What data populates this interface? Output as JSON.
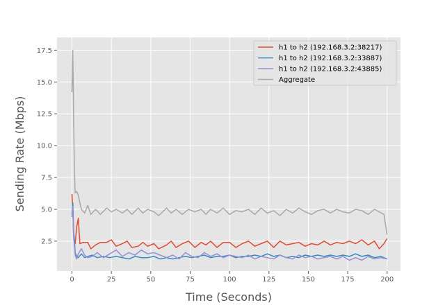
{
  "chart_data": {
    "type": "line",
    "title": "",
    "xlabel": "Time (Seconds)",
    "ylabel": "Sending Rate (Mbps)",
    "xlim": [
      -9.5,
      208.5
    ],
    "ylim": [
      0.15,
      18.5
    ],
    "xticks": [
      0,
      25,
      50,
      75,
      100,
      125,
      150,
      175,
      200
    ],
    "yticks": [
      2.5,
      5.0,
      7.5,
      10.0,
      12.5,
      15.0,
      17.5
    ],
    "xtick_labels": [
      "0",
      "25",
      "50",
      "75",
      "100",
      "125",
      "150",
      "175",
      "200"
    ],
    "ytick_labels": [
      "2.5",
      "5.0",
      "7.5",
      "10.0",
      "12.5",
      "15.0",
      "17.5"
    ],
    "grid": true,
    "legend_position": "top-right",
    "series": [
      {
        "name": "h1 to h2 (192.168.3.2:38217)",
        "color": "#e24a33",
        "x": [
          0,
          0.5,
          1,
          2,
          3,
          4,
          5,
          7,
          10,
          12,
          15,
          18,
          22,
          25,
          28,
          32,
          35,
          38,
          42,
          45,
          48,
          52,
          55,
          60,
          63,
          66,
          70,
          74,
          78,
          82,
          85,
          88,
          92,
          96,
          100,
          104,
          108,
          112,
          116,
          120,
          124,
          128,
          132,
          136,
          140,
          144,
          148,
          152,
          156,
          160,
          164,
          168,
          172,
          176,
          180,
          184,
          188,
          192,
          195,
          198,
          200
        ],
        "y": [
          6.2,
          5.0,
          3.0,
          2.3,
          3.6,
          4.3,
          2.3,
          2.4,
          2.4,
          1.9,
          2.2,
          2.4,
          2.4,
          2.6,
          2.1,
          2.3,
          2.5,
          2.0,
          2.1,
          2.4,
          2.1,
          2.3,
          1.9,
          2.2,
          2.5,
          2.0,
          2.3,
          2.5,
          2.0,
          2.4,
          2.2,
          2.5,
          2.0,
          2.4,
          2.4,
          2.0,
          2.3,
          2.5,
          2.1,
          2.3,
          2.5,
          2.0,
          2.5,
          2.2,
          2.3,
          2.4,
          2.1,
          2.3,
          2.2,
          2.5,
          2.2,
          2.4,
          2.3,
          2.5,
          2.3,
          2.6,
          2.2,
          2.5,
          1.9,
          2.3,
          2.7
        ]
      },
      {
        "name": "h1 to h2 (192.168.3.2:33887)",
        "color": "#348abd",
        "x": [
          0,
          0.5,
          1,
          2,
          3,
          4,
          6,
          8,
          10,
          13,
          16,
          20,
          24,
          28,
          32,
          36,
          40,
          44,
          48,
          52,
          56,
          60,
          64,
          68,
          72,
          76,
          80,
          84,
          88,
          92,
          96,
          100,
          104,
          108,
          112,
          116,
          120,
          124,
          128,
          132,
          136,
          140,
          144,
          148,
          152,
          156,
          160,
          164,
          168,
          172,
          176,
          180,
          184,
          188,
          192,
          196,
          200
        ],
        "y": [
          4.6,
          5.5,
          3.5,
          1.6,
          1.3,
          1.2,
          1.5,
          1.2,
          1.3,
          1.4,
          1.2,
          1.3,
          1.2,
          1.3,
          1.2,
          1.1,
          1.3,
          1.2,
          1.2,
          1.3,
          1.1,
          1.2,
          1.1,
          1.2,
          1.3,
          1.2,
          1.3,
          1.4,
          1.2,
          1.3,
          1.3,
          1.4,
          1.2,
          1.3,
          1.3,
          1.4,
          1.3,
          1.5,
          1.3,
          1.4,
          1.2,
          1.3,
          1.2,
          1.4,
          1.3,
          1.4,
          1.3,
          1.4,
          1.3,
          1.4,
          1.3,
          1.5,
          1.3,
          1.4,
          1.2,
          1.3,
          1.1
        ]
      },
      {
        "name": "h1 to h2 (192.168.3.2:43885)",
        "color": "#988ed5",
        "x": [
          0,
          0.5,
          1,
          2,
          3,
          4,
          6,
          8,
          10,
          13,
          16,
          20,
          24,
          28,
          32,
          36,
          40,
          44,
          48,
          52,
          56,
          60,
          64,
          68,
          72,
          76,
          80,
          84,
          88,
          92,
          96,
          100,
          104,
          108,
          112,
          116,
          120,
          124,
          128,
          132,
          136,
          140,
          144,
          148,
          152,
          156,
          160,
          164,
          168,
          172,
          176,
          180,
          184,
          188,
          192,
          196,
          200
        ],
        "y": [
          4.4,
          5.2,
          2.9,
          1.4,
          1.1,
          1.5,
          1.9,
          1.4,
          1.2,
          1.3,
          1.6,
          1.2,
          1.5,
          1.8,
          1.3,
          1.6,
          1.4,
          1.8,
          1.5,
          1.6,
          1.4,
          1.2,
          1.4,
          1.1,
          1.6,
          1.3,
          1.2,
          1.6,
          1.3,
          1.5,
          1.2,
          1.4,
          1.3,
          1.2,
          1.4,
          1.1,
          1.3,
          1.2,
          1.1,
          1.4,
          1.2,
          1.1,
          1.4,
          1.2,
          1.3,
          1.1,
          1.2,
          1.3,
          1.1,
          1.3,
          1.0,
          1.2,
          1.0,
          1.3,
          1.1,
          1.2,
          1.1
        ]
      },
      {
        "name": "Aggregate",
        "color": "#a8a8a8",
        "x": [
          0,
          0.5,
          1,
          1.5,
          2,
          3,
          4,
          5,
          6,
          8,
          10,
          12,
          15,
          18,
          22,
          25,
          28,
          32,
          35,
          38,
          42,
          45,
          48,
          52,
          55,
          60,
          63,
          66,
          70,
          74,
          78,
          82,
          85,
          88,
          92,
          96,
          100,
          104,
          108,
          112,
          116,
          120,
          124,
          128,
          132,
          136,
          140,
          144,
          148,
          152,
          156,
          160,
          164,
          168,
          172,
          176,
          180,
          184,
          188,
          192,
          195,
          198,
          200
        ],
        "y": [
          14.2,
          17.5,
          12.5,
          8.5,
          6.3,
          6.4,
          6.1,
          5.5,
          5.0,
          4.7,
          5.3,
          4.6,
          5.0,
          4.6,
          5.1,
          4.8,
          5.0,
          4.7,
          5.0,
          4.6,
          5.1,
          4.7,
          5.0,
          4.8,
          4.5,
          5.1,
          4.7,
          5.0,
          4.6,
          5.0,
          4.8,
          5.0,
          4.6,
          5.0,
          4.7,
          5.1,
          4.6,
          4.9,
          4.8,
          5.0,
          4.6,
          5.1,
          4.7,
          4.9,
          4.5,
          5.0,
          4.7,
          5.1,
          4.8,
          4.6,
          4.9,
          5.0,
          4.7,
          5.0,
          4.8,
          4.7,
          5.0,
          4.9,
          4.6,
          5.0,
          4.8,
          4.6,
          3.0
        ]
      }
    ]
  },
  "colors": {
    "plot_background": "#e5e5e5",
    "grid": "#ffffff",
    "text": "#555555"
  }
}
